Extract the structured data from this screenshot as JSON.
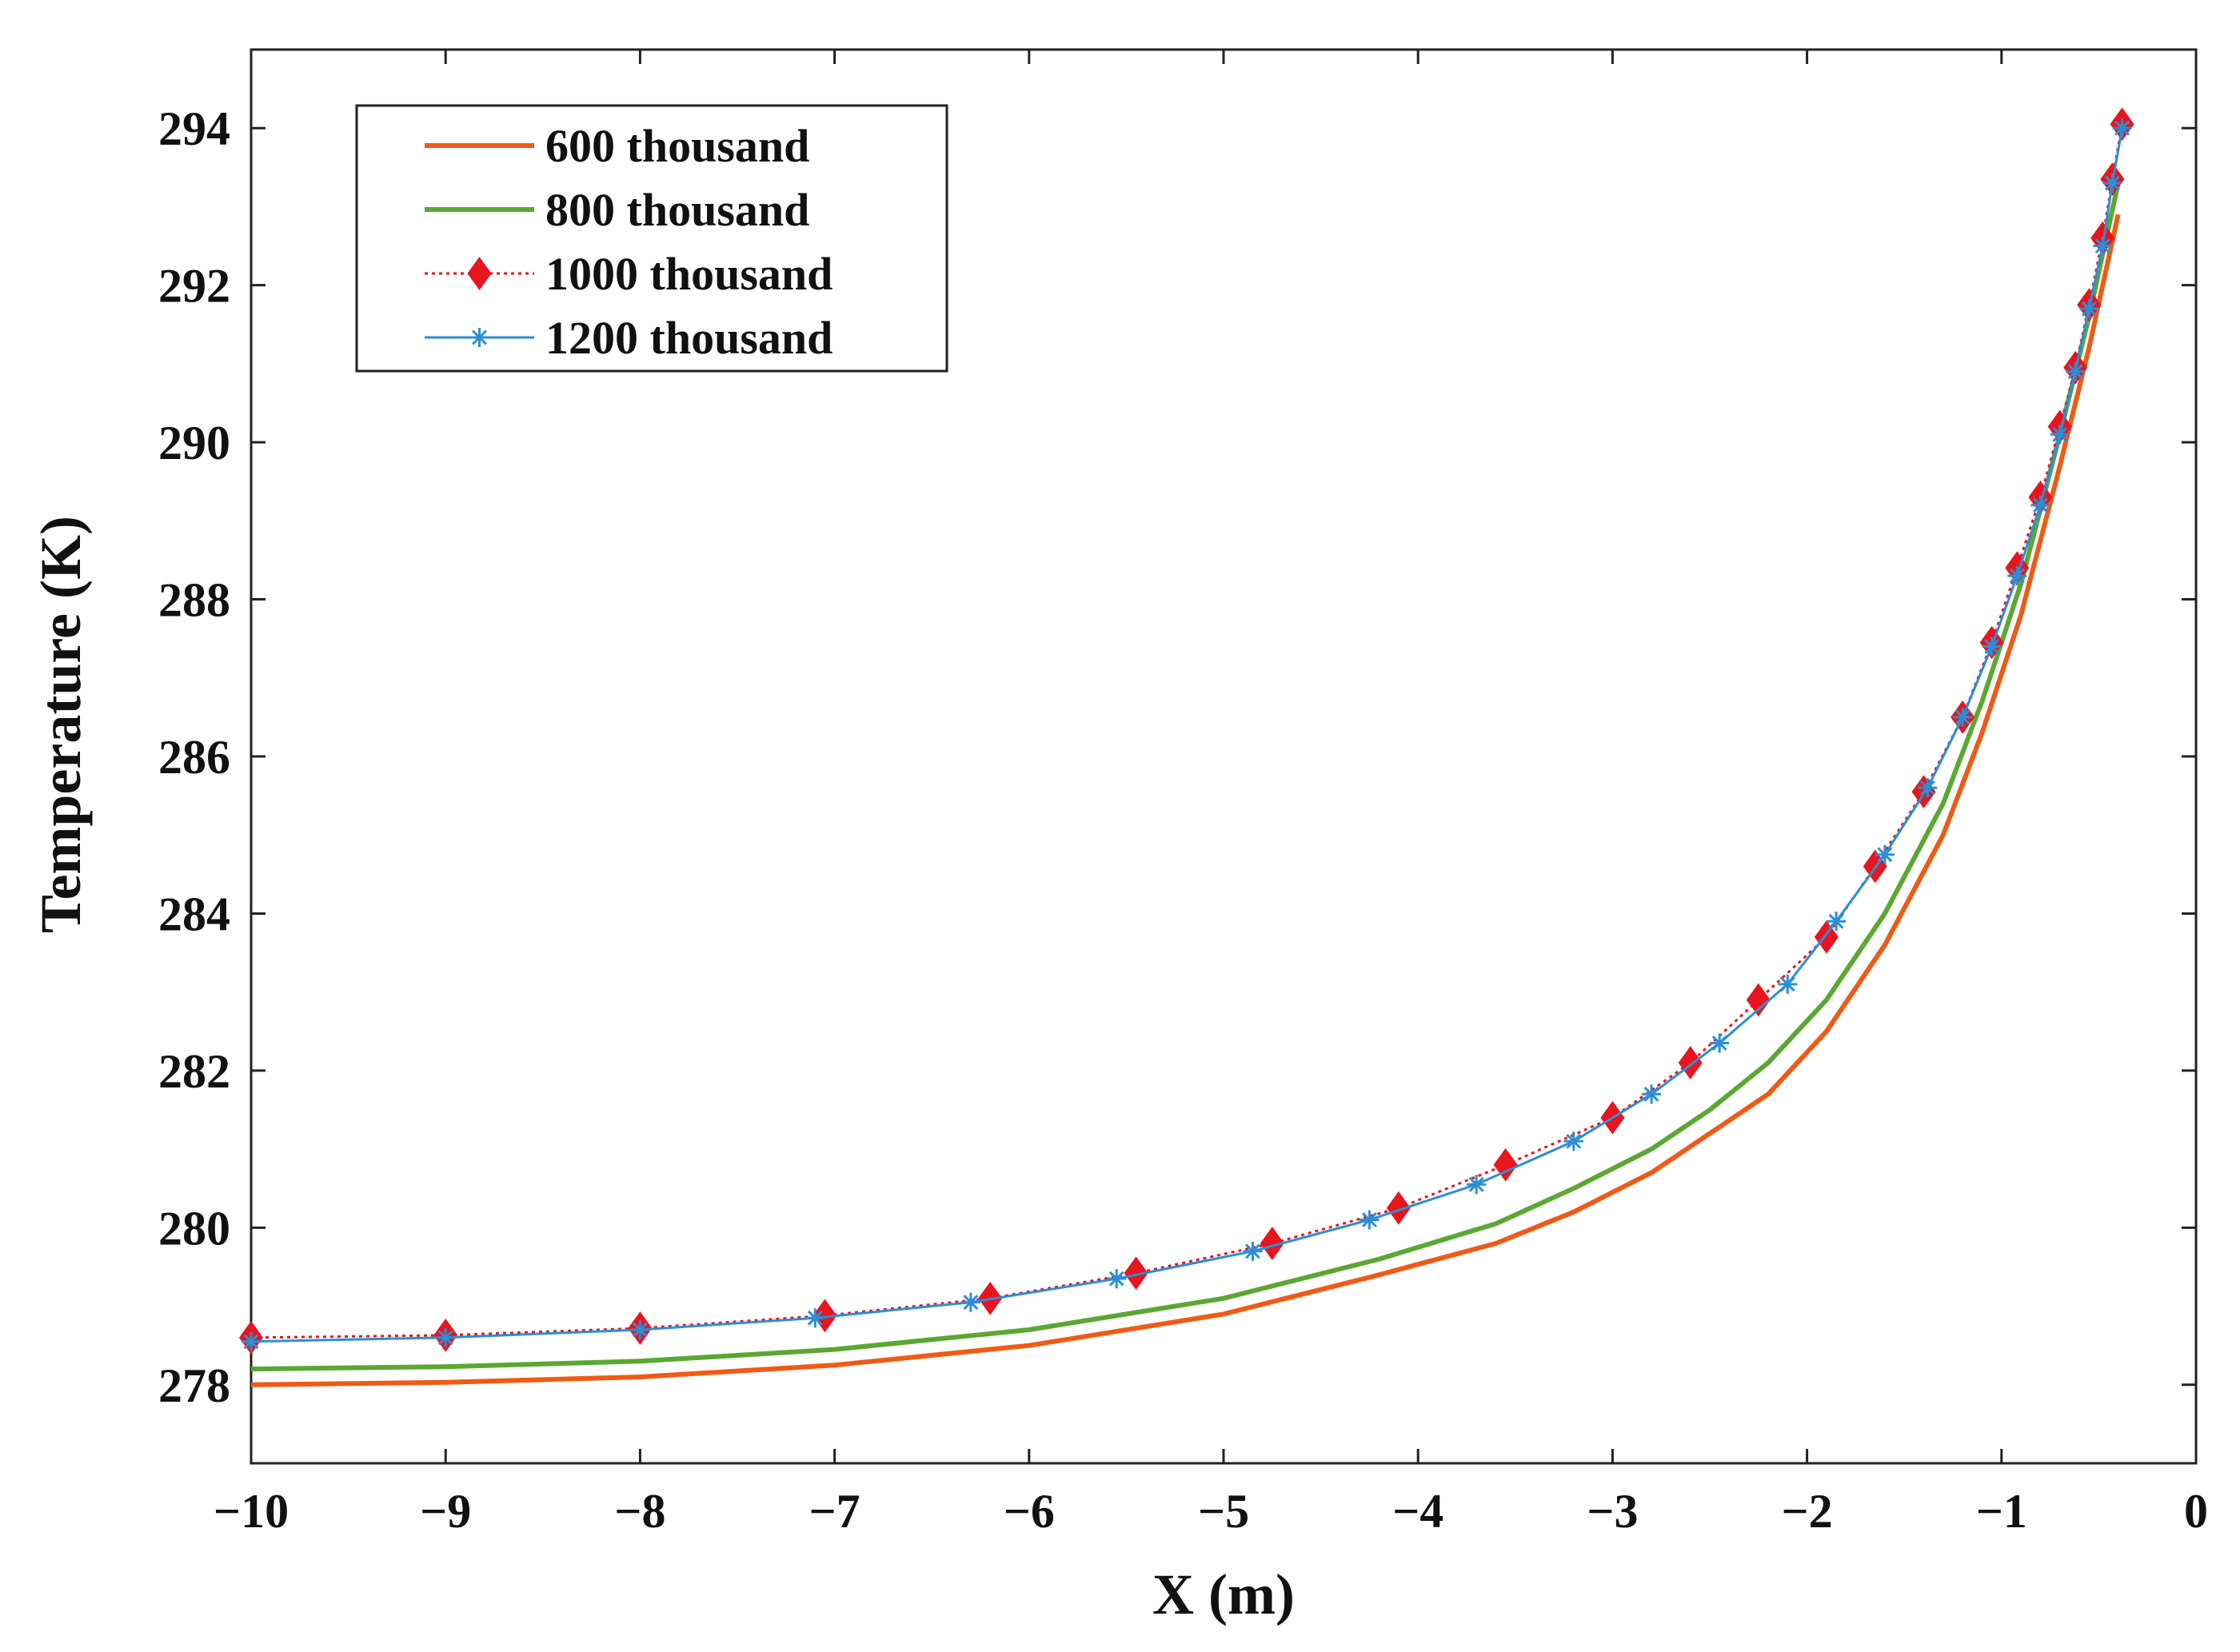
{
  "chart_data": {
    "type": "line",
    "title": "",
    "xlabel": "X (m)",
    "ylabel": "Temperature (K)",
    "xlim": [
      -10,
      0
    ],
    "ylim": [
      277,
      295
    ],
    "xticks": [
      -10,
      -9,
      -8,
      -7,
      -6,
      -5,
      -4,
      -3,
      -2,
      -1,
      0
    ],
    "xtick_labels": [
      "−10",
      "−9",
      "−8",
      "−7",
      "−6",
      "−5",
      "−4",
      "−3",
      "−2",
      "−1",
      "0"
    ],
    "yticks": [
      278,
      280,
      282,
      284,
      286,
      288,
      290,
      292,
      294
    ],
    "ytick_labels": [
      "278",
      "280",
      "282",
      "284",
      "286",
      "288",
      "290",
      "292",
      "294"
    ],
    "grid": false,
    "legend_position": "top-left",
    "series": [
      {
        "name": "600 thousand",
        "color": "#f05a14",
        "marker": "none",
        "line_style": "solid",
        "x": [
          -10,
          -9,
          -8,
          -7,
          -6,
          -5,
          -4.2,
          -3.6,
          -3.2,
          -2.8,
          -2.5,
          -2.2,
          -1.9,
          -1.6,
          -1.3,
          -1.1,
          -0.9,
          -0.7,
          -0.55,
          -0.4
        ],
        "y": [
          278.0,
          278.03,
          278.1,
          278.25,
          278.5,
          278.9,
          279.4,
          279.8,
          280.2,
          280.7,
          281.2,
          281.7,
          282.5,
          283.6,
          285.0,
          286.3,
          287.8,
          289.7,
          291.2,
          292.9
        ]
      },
      {
        "name": "800 thousand",
        "color": "#5aa832",
        "marker": "none",
        "line_style": "solid",
        "x": [
          -10,
          -9,
          -8,
          -7,
          -6,
          -5,
          -4.2,
          -3.6,
          -3.2,
          -2.8,
          -2.5,
          -2.2,
          -1.9,
          -1.6,
          -1.3,
          -1.1,
          -0.9,
          -0.7,
          -0.55,
          -0.4
        ],
        "y": [
          278.2,
          278.23,
          278.3,
          278.45,
          278.7,
          279.1,
          279.6,
          280.05,
          280.5,
          281.0,
          281.5,
          282.1,
          282.9,
          284.0,
          285.4,
          286.7,
          288.2,
          290.1,
          291.6,
          293.3
        ]
      },
      {
        "name": "1000 thousand",
        "color": "#e8141e",
        "marker": "diamond",
        "line_style": "dotted",
        "x": [
          -10,
          -9,
          -8,
          -7.05,
          -6.2,
          -5.45,
          -4.75,
          -4.1,
          -3.55,
          -3.0,
          -2.6,
          -2.25,
          -1.9,
          -1.65,
          -1.4,
          -1.2,
          -1.05,
          -0.92,
          -0.8,
          -0.7,
          -0.62,
          -0.55,
          -0.48,
          -0.43,
          -0.38
        ],
        "y": [
          278.6,
          278.63,
          278.72,
          278.88,
          279.1,
          279.42,
          279.8,
          280.25,
          280.8,
          281.4,
          282.1,
          282.9,
          283.7,
          284.6,
          285.55,
          286.5,
          287.45,
          288.4,
          289.3,
          290.2,
          290.95,
          291.75,
          292.6,
          293.35,
          294.05
        ]
      },
      {
        "name": "1200 thousand",
        "color": "#2a8fd6",
        "marker": "asterisk",
        "line_style": "solid",
        "x": [
          -10,
          -9,
          -8,
          -7.1,
          -6.3,
          -5.55,
          -4.85,
          -4.25,
          -3.7,
          -3.2,
          -2.8,
          -2.45,
          -2.1,
          -1.85,
          -1.6,
          -1.38,
          -1.2,
          -1.05,
          -0.92,
          -0.8,
          -0.7,
          -0.62,
          -0.55,
          -0.48,
          -0.43,
          -0.38
        ],
        "y": [
          278.55,
          278.6,
          278.7,
          278.85,
          279.05,
          279.35,
          279.7,
          280.1,
          280.55,
          281.1,
          281.7,
          282.35,
          283.1,
          283.9,
          284.75,
          285.6,
          286.5,
          287.4,
          288.3,
          289.2,
          290.1,
          290.9,
          291.7,
          292.5,
          293.3,
          294.0
        ]
      }
    ]
  }
}
